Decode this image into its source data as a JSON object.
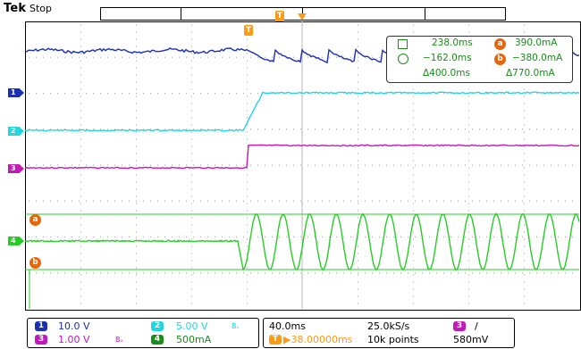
{
  "header": {
    "brand": "Tek",
    "status": "Stop",
    "trigger_marker": "T"
  },
  "channels": [
    {
      "id": "1",
      "color": "#1a2fb5",
      "scale": "10.0 V"
    },
    {
      "id": "2",
      "color": "#22d6e0",
      "scale": "5.00 V"
    },
    {
      "id": "3",
      "color": "#c21ab8",
      "scale": "1.00 V"
    },
    {
      "id": "4",
      "color": "#27cc27",
      "scale": "500mA"
    }
  ],
  "cursors": {
    "a_label": "a",
    "b_label": "b",
    "color": "#e8660b"
  },
  "measurements": {
    "row1_time": "238.0ms",
    "row1_label": "a",
    "row1_value": "390.0mA",
    "row2_time": "−162.0ms",
    "row2_label": "b",
    "row2_value": "−380.0mA",
    "row3_time": "Δ400.0ms",
    "row3_value": "Δ770.0mA"
  },
  "status": {
    "timebase": "40.0ms",
    "sample_rate": "25.0kS/s",
    "trigger_position": "▶38.00000ms",
    "record_length": "10k points",
    "trigger_source": "3",
    "trigger_slope": "/",
    "trigger_level": "580mV",
    "bw_icon": "Bᵥ"
  }
}
